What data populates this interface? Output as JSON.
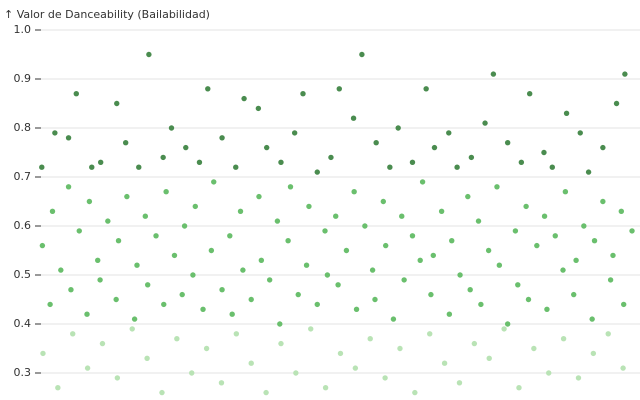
{
  "chart_data": {
    "type": "scatter",
    "title": "↑ Valor de Danceability (Bailabilidad)",
    "xlim": [
      0,
      100
    ],
    "ylim": [
      0.25,
      1.0
    ],
    "yticks": [
      {
        "value": 1,
        "label": "1.0"
      },
      0.9,
      0.8,
      0.7,
      0.6,
      0.5,
      0.4,
      0.3
    ],
    "grid": true,
    "series": [
      {
        "color": "#4a8c4f",
        "x": [
          0.3,
          2.5,
          4.8,
          6.1,
          8.7,
          10.2,
          12.9,
          14.4,
          16.6,
          18.3,
          20.7,
          22.1,
          24.5,
          26.8,
          28.2,
          30.6,
          32.9,
          34.3,
          36.7,
          38.1,
          40.5,
          42.8,
          44.2,
          46.6,
          48.9,
          50.3,
          52.7,
          54.1,
          56.5,
          58.8,
          60.2,
          62.6,
          64.9,
          66.3,
          68.7,
          70.1,
          72.5,
          74.8,
          76.2,
          78.6,
          80.9,
          82.3,
          84.7,
          86.1,
          88.5,
          90.8,
          92.2,
          94.6,
          96.9,
          98.3
        ],
        "values": [
          0.72,
          0.79,
          0.78,
          0.87,
          0.72,
          0.73,
          0.85,
          0.77,
          0.72,
          0.95,
          0.74,
          0.8,
          0.76,
          0.73,
          0.88,
          0.78,
          0.72,
          0.86,
          0.84,
          0.76,
          0.73,
          0.79,
          0.87,
          0.71,
          0.74,
          0.88,
          0.82,
          0.95,
          0.77,
          0.72,
          0.8,
          0.73,
          0.88,
          0.76,
          0.79,
          0.72,
          0.74,
          0.81,
          0.91,
          0.77,
          0.73,
          0.87,
          0.75,
          0.72,
          0.83,
          0.79,
          0.71,
          0.76,
          0.85,
          0.91
        ]
      },
      {
        "color": "#6abf6d",
        "x": [
          0.4,
          1.7,
          2.1,
          3.5,
          4.8,
          5.2,
          6.6,
          7.9,
          8.3,
          9.7,
          10.1,
          11.4,
          12.8,
          13.2,
          14.6,
          15.9,
          16.3,
          17.7,
          18.1,
          19.5,
          20.8,
          21.2,
          22.6,
          23.9,
          24.3,
          25.7,
          26.1,
          27.4,
          28.8,
          29.2,
          30.6,
          31.9,
          32.3,
          33.7,
          34.1,
          35.5,
          36.8,
          37.2,
          38.6,
          39.9,
          40.3,
          41.7,
          42.1,
          43.4,
          44.8,
          45.2,
          46.6,
          47.9,
          48.3,
          49.7,
          50.1,
          51.5,
          52.8,
          53.2,
          54.6,
          55.9,
          56.3,
          57.7,
          58.1,
          59.4,
          60.8,
          61.2,
          62.6,
          63.9,
          64.3,
          65.7,
          66.1,
          67.5,
          68.8,
          69.2,
          70.6,
          71.9,
          72.3,
          73.7,
          74.1,
          75.4,
          76.8,
          77.2,
          78.6,
          79.9,
          80.3,
          81.7,
          82.1,
          83.5,
          84.8,
          85.2,
          86.6,
          87.9,
          88.3,
          89.7,
          90.1,
          91.4,
          92.8,
          93.2,
          94.6,
          95.9,
          96.3,
          97.7,
          98.1,
          99.5
        ],
        "values": [
          0.56,
          0.44,
          0.63,
          0.51,
          0.68,
          0.47,
          0.59,
          0.42,
          0.65,
          0.53,
          0.49,
          0.61,
          0.45,
          0.57,
          0.66,
          0.41,
          0.52,
          0.62,
          0.48,
          0.58,
          0.44,
          0.67,
          0.54,
          0.46,
          0.6,
          0.5,
          0.64,
          0.43,
          0.55,
          0.69,
          0.47,
          0.58,
          0.42,
          0.63,
          0.51,
          0.45,
          0.66,
          0.53,
          0.49,
          0.61,
          0.4,
          0.57,
          0.68,
          0.46,
          0.52,
          0.64,
          0.44,
          0.59,
          0.5,
          0.62,
          0.48,
          0.55,
          0.67,
          0.43,
          0.6,
          0.51,
          0.45,
          0.65,
          0.56,
          0.41,
          0.62,
          0.49,
          0.58,
          0.53,
          0.69,
          0.46,
          0.54,
          0.63,
          0.42,
          0.57,
          0.5,
          0.66,
          0.47,
          0.61,
          0.44,
          0.55,
          0.68,
          0.52,
          0.4,
          0.59,
          0.48,
          0.64,
          0.45,
          0.56,
          0.62,
          0.43,
          0.58,
          0.51,
          0.67,
          0.46,
          0.53,
          0.6,
          0.41,
          0.57,
          0.65,
          0.49,
          0.54,
          0.63,
          0.44,
          0.59
        ]
      },
      {
        "color": "#b9e3b5",
        "x": [
          0.5,
          3,
          5.5,
          8,
          10.5,
          13,
          15.5,
          18,
          20.5,
          23,
          25.5,
          28,
          30.5,
          33,
          35.5,
          38,
          40.5,
          43,
          45.5,
          48,
          50.5,
          53,
          55.5,
          58,
          60.5,
          63,
          65.5,
          68,
          70.5,
          73,
          75.5,
          78,
          80.5,
          83,
          85.5,
          88,
          90.5,
          93,
          95.5,
          98
        ],
        "values": [
          0.34,
          0.27,
          0.38,
          0.31,
          0.36,
          0.29,
          0.39,
          0.33,
          0.26,
          0.37,
          0.3,
          0.35,
          0.28,
          0.38,
          0.32,
          0.26,
          0.36,
          0.3,
          0.39,
          0.27,
          0.34,
          0.31,
          0.37,
          0.29,
          0.35,
          0.26,
          0.38,
          0.32,
          0.28,
          0.36,
          0.33,
          0.39,
          0.27,
          0.35,
          0.3,
          0.37,
          0.29,
          0.34,
          0.38,
          0.31
        ]
      }
    ]
  }
}
